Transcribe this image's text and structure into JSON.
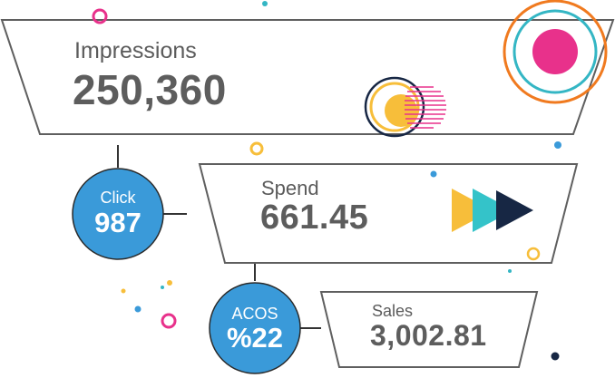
{
  "funnel": {
    "impressions": {
      "label": "Impressions",
      "value": "250,360"
    },
    "spend": {
      "label": "Spend",
      "value": "661.45"
    },
    "sales": {
      "label": "Sales",
      "value": "3,002.81"
    }
  },
  "metrics": {
    "click": {
      "label": "Click",
      "value": "987"
    },
    "acos": {
      "label": "ACOS",
      "value": "%22"
    }
  },
  "colors": {
    "outline": "#5f5f5f",
    "circle_blue": "#3a9ad9",
    "magenta": "#e8318b",
    "orange": "#f07a1f",
    "teal": "#34b6c4",
    "yellow": "#f7be3a",
    "navy": "#172744"
  }
}
